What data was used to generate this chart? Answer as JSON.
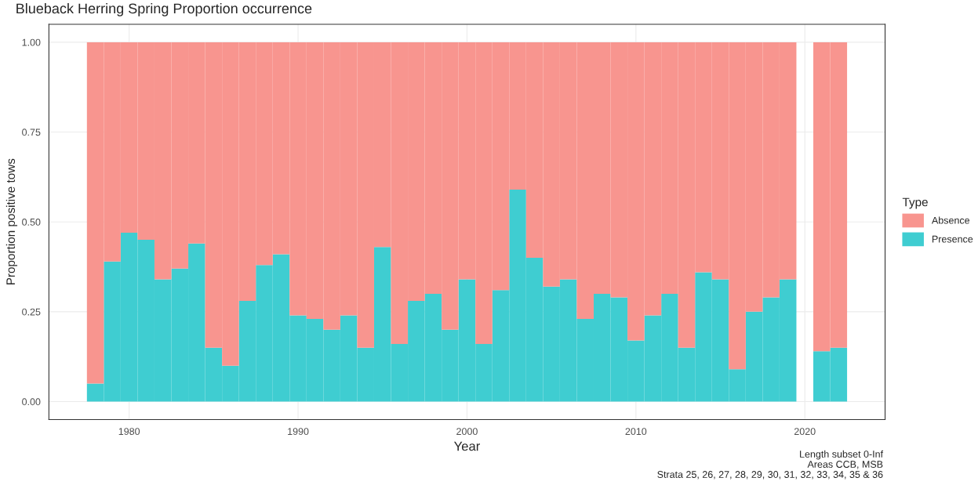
{
  "chart_data": {
    "type": "bar",
    "title": "Blueback Herring Spring Proportion occurrence",
    "xlabel": "Year",
    "ylabel": "Proportion positive tows",
    "legend_title": "Type",
    "x": [
      1978,
      1979,
      1980,
      1981,
      1982,
      1983,
      1984,
      1985,
      1986,
      1987,
      1988,
      1989,
      1990,
      1991,
      1992,
      1993,
      1994,
      1995,
      1996,
      1997,
      1998,
      1999,
      2000,
      2001,
      2002,
      2003,
      2004,
      2005,
      2006,
      2007,
      2008,
      2009,
      2010,
      2011,
      2012,
      2013,
      2014,
      2015,
      2016,
      2017,
      2018,
      2019,
      2021,
      2022
    ],
    "stacked": true,
    "series": [
      {
        "name": "Presence",
        "color": "#3fcdd1",
        "values": [
          0.05,
          0.39,
          0.47,
          0.45,
          0.34,
          0.37,
          0.44,
          0.15,
          0.1,
          0.28,
          0.38,
          0.41,
          0.24,
          0.23,
          0.2,
          0.24,
          0.15,
          0.43,
          0.16,
          0.28,
          0.3,
          0.2,
          0.34,
          0.16,
          0.31,
          0.59,
          0.4,
          0.32,
          0.34,
          0.23,
          0.3,
          0.29,
          0.17,
          0.24,
          0.3,
          0.15,
          0.36,
          0.34,
          0.09,
          0.25,
          0.29,
          0.34,
          0.14,
          0.15
        ]
      },
      {
        "name": "Absence",
        "color": "#f8958f",
        "values": [
          0.95,
          0.61,
          0.53,
          0.55,
          0.66,
          0.63,
          0.56,
          0.85,
          0.9,
          0.72,
          0.62,
          0.59,
          0.76,
          0.77,
          0.8,
          0.76,
          0.85,
          0.57,
          0.84,
          0.72,
          0.7,
          0.8,
          0.66,
          0.84,
          0.69,
          0.41,
          0.6,
          0.68,
          0.66,
          0.77,
          0.7,
          0.71,
          0.83,
          0.76,
          0.7,
          0.85,
          0.64,
          0.66,
          0.91,
          0.75,
          0.71,
          0.66,
          0.86,
          0.85
        ]
      }
    ],
    "xlim": [
      1975.25,
      2024.75
    ],
    "xticks": [
      1980,
      1990,
      2000,
      2010,
      2020
    ],
    "ylim": [
      -0.05,
      1.05
    ],
    "yticks": [
      {
        "value": 0,
        "label": "0.00"
      },
      {
        "value": 0.25,
        "label": "0.25"
      },
      {
        "value": 0.5,
        "label": "0.50"
      },
      {
        "value": 0.75,
        "label": "0.75"
      },
      {
        "value": 1,
        "label": "1.00"
      }
    ],
    "grid": true,
    "legend": "right",
    "annotations": [
      "Length subset 0-Inf",
      "Areas CCB, MSB",
      "Strata 25, 26, 27, 28, 29, 30, 31, 32, 33, 34, 35 & 36"
    ]
  }
}
